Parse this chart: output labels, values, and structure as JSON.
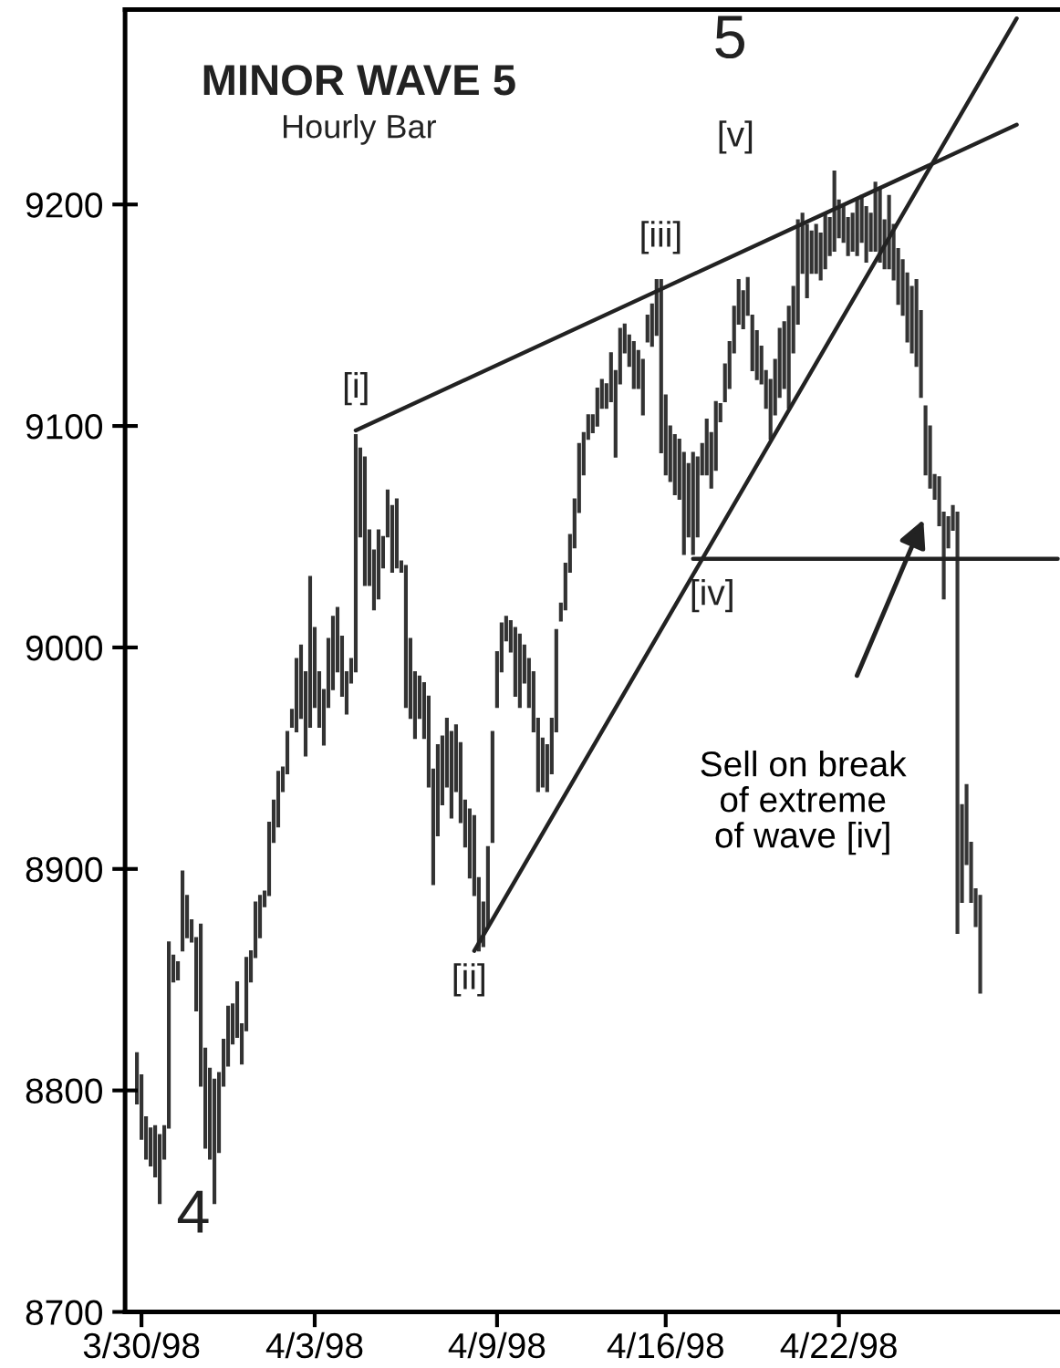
{
  "chart_data": {
    "type": "bar",
    "title": "MINOR WAVE 5",
    "subtitle": "Hourly Bar",
    "ylim": [
      8700,
      9288
    ],
    "yticks": [
      8700,
      8800,
      8900,
      9000,
      9100,
      9200
    ],
    "grid": false,
    "categories": [
      null,
      "3/30/98",
      null,
      null,
      null,
      null,
      null,
      null,
      null,
      null,
      null,
      null,
      null,
      null,
      null,
      null,
      null,
      null,
      null,
      null,
      null,
      null,
      null,
      null,
      null,
      null,
      null,
      null,
      null,
      null,
      null,
      null,
      null,
      null,
      null,
      null,
      null,
      null,
      null,
      "4/3/98",
      null,
      null,
      null,
      null,
      null,
      null,
      null,
      null,
      null,
      null,
      null,
      null,
      null,
      null,
      null,
      null,
      null,
      null,
      null,
      null,
      null,
      null,
      null,
      null,
      null,
      null,
      null,
      null,
      null,
      null,
      null,
      null,
      null,
      null,
      null,
      null,
      null,
      null,
      null,
      "4/9/98",
      null,
      null,
      null,
      null,
      null,
      null,
      null,
      null,
      null,
      null,
      null,
      null,
      null,
      null,
      null,
      null,
      null,
      null,
      null,
      null,
      null,
      null,
      null,
      null,
      null,
      null,
      null,
      null,
      null,
      null,
      null,
      null,
      null,
      null,
      null,
      null,
      "4/16/98",
      null,
      null,
      null,
      null,
      null,
      null,
      null,
      null,
      null,
      null,
      null,
      null,
      null,
      null,
      null,
      null,
      null,
      null,
      null,
      null,
      null,
      null,
      null,
      null,
      null,
      null,
      null,
      null,
      null,
      null,
      null,
      null,
      null,
      null,
      null,
      null,
      null,
      "4/22/98",
      null,
      null,
      null,
      null,
      null,
      null,
      null,
      null,
      null,
      null,
      null,
      null,
      null,
      null,
      null,
      null,
      null,
      null,
      null,
      null,
      null,
      null,
      null,
      null,
      null,
      null,
      null,
      null,
      null,
      null,
      null,
      null,
      null,
      null,
      null,
      null,
      null,
      null,
      null,
      null,
      null,
      null,
      null,
      null,
      null,
      null,
      null,
      null
    ],
    "series": [
      {
        "color": "#333333",
        "base": [
          8794,
          8778,
          8769,
          8766,
          8761,
          8749,
          8769,
          8783,
          8849,
          8850,
          8863,
          8869,
          8867,
          8836,
          8802,
          8774,
          8769,
          8749,
          8772,
          8802,
          8811,
          8821,
          8824,
          8812,
          8827,
          8849,
          8860,
          8869,
          8883,
          8888,
          8912,
          8919,
          8935,
          8943,
          8964,
          8962,
          8968,
          8951,
          8964,
          8973,
          8964,
          8956,
          8973,
          8981,
          8989,
          8978,
          8970,
          8984,
          8989,
          9050,
          9028,
          9028,
          9017,
          9022,
          9036,
          9050,
          9034,
          9036,
          9034,
          8973,
          8968,
          8959,
          8968,
          8959,
          8937,
          8893,
          8915,
          8929,
          8937,
          8923,
          8935,
          8921,
          8910,
          8896,
          8888,
          8863,
          8865,
          8874,
          8912,
          8973,
          8989,
          9003,
          8998,
          8978,
          8973,
          8984,
          8973,
          8962,
          8935,
          8937,
          8935,
          8943,
          8962,
          9012,
          9017,
          9034,
          9045,
          9061,
          9078,
          9094,
          9097,
          9100,
          9108,
          9108,
          9111,
          9086,
          9119,
          9133,
          9127,
          9117,
          9117,
          9105,
          9138,
          9136,
          9141,
          9088,
          9078,
          9075,
          9069,
          9067,
          9042,
          9050,
          9042,
          9050,
          9078,
          9078,
          9072,
          9080,
          9102,
          9111,
          9117,
          9133,
          9146,
          9144,
          9150,
          9125,
          9121,
          9119,
          9108,
          9094,
          9105,
          9113,
          9117,
          9108,
          9133,
          9146,
          9169,
          9158,
          9169,
          9169,
          9166,
          9171,
          9177,
          9179,
          9185,
          9183,
          9177,
          9179,
          9177,
          9183,
          9174,
          9179,
          9179,
          9174,
          9171,
          9171,
          9166,
          9155,
          9150,
          9138,
          9133,
          9127,
          9113,
          9078,
          9072,
          9067,
          9055,
          9022,
          9045,
          9053,
          8871,
          8885,
          8902,
          8885,
          8874,
          8844,
          null,
          null,
          null,
          null,
          null,
          null,
          null,
          null,
          null,
          null,
          null,
          null,
          null,
          null,
          null,
          null,
          null
        ],
        "values": [
          23,
          29,
          19,
          17,
          23,
          31,
          15,
          84,
          12,
          8,
          36,
          19,
          10,
          33,
          73,
          45,
          41,
          56,
          36,
          21,
          27,
          18,
          25,
          18,
          33,
          14,
          25,
          19,
          7,
          33,
          19,
          25,
          11,
          19,
          8,
          33,
          33,
          38,
          68,
          36,
          25,
          25,
          31,
          33,
          29,
          27,
          19,
          11,
          107,
          40,
          58,
          25,
          27,
          31,
          14,
          21,
          30,
          31,
          5,
          64,
          36,
          30,
          19,
          25,
          41,
          52,
          41,
          31,
          31,
          39,
          30,
          36,
          21,
          31,
          36,
          33,
          20,
          36,
          50,
          25,
          22,
          11,
          14,
          31,
          33,
          17,
          22,
          27,
          33,
          22,
          21,
          25,
          46,
          8,
          21,
          17,
          22,
          31,
          19,
          11,
          8,
          17,
          13,
          11,
          22,
          39,
          25,
          13,
          14,
          21,
          17,
          25,
          12,
          19,
          25,
          78,
          36,
          25,
          27,
          27,
          46,
          33,
          46,
          36,
          14,
          25,
          25,
          31,
          8,
          17,
          21,
          21,
          20,
          17,
          17,
          25,
          22,
          17,
          17,
          27,
          25,
          31,
          30,
          46,
          30,
          47,
          27,
          33,
          19,
          22,
          21,
          25,
          17,
          36,
          17,
          17,
          17,
          17,
          25,
          21,
          25,
          17,
          31,
          33,
          22,
          33,
          25,
          25,
          25,
          31,
          30,
          39,
          39,
          31,
          28,
          11,
          22,
          39,
          14,
          11,
          190,
          44,
          36,
          27,
          17,
          44,
          null,
          null,
          null,
          null,
          null,
          null,
          null,
          null,
          null,
          null,
          null,
          null,
          null,
          null,
          null,
          null,
          null
        ]
      },
      {
        "type": "line",
        "color": "#222222",
        "values": [
          null,
          null,
          null,
          null,
          null,
          null,
          null,
          null,
          null,
          null,
          null,
          null,
          null,
          null,
          null,
          null,
          null,
          null,
          null,
          null,
          null,
          null,
          null,
          null,
          null,
          null,
          null,
          null,
          null,
          null,
          null,
          null,
          null,
          null,
          null,
          null,
          null,
          null,
          null,
          null,
          null,
          null,
          null,
          null,
          null,
          null,
          null,
          null,
          9098,
          null,
          null,
          null,
          null,
          null,
          null,
          null,
          null,
          null,
          null,
          null,
          null,
          null,
          null,
          null,
          null,
          null,
          null,
          null,
          null,
          null,
          null,
          null,
          null,
          null,
          null,
          null,
          null,
          null,
          null,
          null,
          null,
          null,
          null,
          null,
          null,
          null,
          null,
          null,
          null,
          null,
          null,
          null,
          null,
          null,
          null,
          null,
          null,
          null,
          null,
          null,
          null,
          null,
          null,
          null,
          null,
          null,
          null,
          null,
          null,
          null,
          null,
          null,
          null,
          null,
          null,
          null,
          null,
          null,
          null,
          null,
          null,
          null,
          null,
          null,
          null,
          null,
          null,
          null,
          null,
          null,
          null,
          null,
          null,
          null,
          null,
          null,
          null,
          null,
          null,
          null,
          null,
          null,
          null,
          null,
          null,
          null,
          null,
          null,
          null,
          null,
          null,
          null,
          null,
          null,
          null,
          null,
          null,
          null,
          null,
          null,
          null,
          null,
          null,
          null,
          null,
          null,
          null,
          null,
          null,
          null,
          null,
          null,
          null,
          null,
          null,
          null,
          null,
          null,
          null,
          null,
          null,
          null,
          null,
          null,
          null,
          null,
          null,
          null,
          null,
          null,
          null,
          null,
          null,
          9236,
          null,
          null,
          null,
          null,
          null,
          null,
          null,
          null,
          null
        ]
      },
      {
        "type": "line",
        "color": "#222222",
        "values": [
          null,
          null,
          null,
          null,
          null,
          null,
          null,
          null,
          null,
          null,
          null,
          null,
          null,
          null,
          null,
          null,
          null,
          null,
          null,
          null,
          null,
          null,
          null,
          null,
          null,
          null,
          null,
          null,
          null,
          null,
          null,
          null,
          null,
          null,
          null,
          null,
          null,
          null,
          null,
          null,
          null,
          null,
          null,
          null,
          null,
          null,
          null,
          null,
          null,
          null,
          null,
          null,
          null,
          null,
          null,
          null,
          null,
          null,
          null,
          null,
          null,
          null,
          null,
          null,
          null,
          null,
          null,
          null,
          null,
          null,
          null,
          null,
          null,
          null,
          8863,
          null,
          null,
          null,
          null,
          null,
          null,
          null,
          null,
          null,
          null,
          null,
          null,
          null,
          null,
          null,
          null,
          null,
          null,
          null,
          null,
          null,
          null,
          null,
          null,
          null,
          null,
          null,
          null,
          null,
          null,
          null,
          null,
          null,
          null,
          null,
          null,
          null,
          null,
          null,
          null,
          null,
          null,
          null,
          null,
          null,
          null,
          null,
          null,
          null,
          null,
          null,
          null,
          null,
          null,
          null,
          null,
          null,
          null,
          null,
          null,
          null,
          null,
          null,
          null,
          null,
          null,
          null,
          null,
          null,
          null,
          null,
          null,
          null,
          null,
          null,
          null,
          null,
          null,
          null,
          null,
          null,
          null,
          null,
          null,
          null,
          null,
          null,
          null,
          null,
          null,
          null,
          null,
          null,
          null,
          null,
          null,
          null,
          null,
          null,
          null,
          null,
          null,
          null,
          null,
          null,
          null,
          null,
          null,
          null,
          null,
          null,
          null,
          null,
          null,
          null,
          null,
          null,
          null,
          9284,
          null,
          null,
          null,
          null,
          null,
          null,
          null,
          null,
          null
        ]
      },
      {
        "type": "line",
        "color": "#222222",
        "values": [
          null,
          null,
          null,
          null,
          null,
          null,
          null,
          null,
          null,
          null,
          null,
          null,
          null,
          null,
          null,
          null,
          null,
          null,
          null,
          null,
          null,
          null,
          null,
          null,
          null,
          null,
          null,
          null,
          null,
          null,
          null,
          null,
          null,
          null,
          null,
          null,
          null,
          null,
          null,
          null,
          null,
          null,
          null,
          null,
          null,
          null,
          null,
          null,
          null,
          null,
          null,
          null,
          null,
          null,
          null,
          null,
          null,
          null,
          null,
          null,
          null,
          null,
          null,
          null,
          null,
          null,
          null,
          null,
          null,
          null,
          null,
          null,
          null,
          null,
          null,
          null,
          null,
          null,
          null,
          null,
          null,
          null,
          null,
          null,
          null,
          null,
          null,
          null,
          null,
          null,
          null,
          null,
          null,
          null,
          null,
          null,
          null,
          null,
          null,
          null,
          null,
          null,
          null,
          null,
          null,
          null,
          null,
          null,
          null,
          null,
          null,
          null,
          null,
          null,
          null,
          null,
          null,
          null,
          null,
          null,
          null,
          null,
          9040,
          null,
          null,
          null,
          null,
          null,
          null,
          null,
          null,
          null,
          null,
          null,
          null,
          null,
          null,
          null,
          null,
          null,
          null,
          null,
          null,
          null,
          null,
          null,
          null,
          null,
          null,
          null,
          null,
          null,
          null,
          null,
          null,
          null,
          null,
          null,
          null,
          null,
          null,
          null,
          null,
          null,
          null,
          null,
          null,
          null,
          null,
          null,
          null,
          null,
          null,
          null,
          null,
          null,
          null,
          null,
          null,
          null,
          null,
          null,
          null,
          null,
          null,
          null,
          null,
          null,
          null,
          null,
          null,
          null,
          null,
          null,
          null,
          null,
          null,
          null,
          null,
          null,
          null,
          null,
          9040
        ]
      }
    ],
    "annotations": [
      "4",
      "5",
      "[i]",
      "[ii]",
      "[iii]",
      "[iv]",
      "[v]",
      "Sell on break\nof extreme\nof wave [iv]"
    ]
  }
}
